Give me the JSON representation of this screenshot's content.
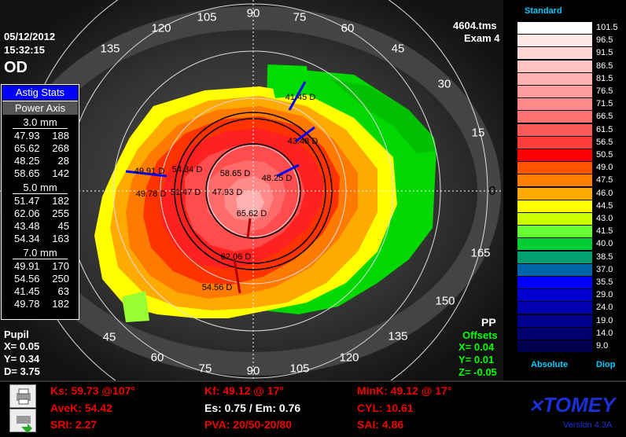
{
  "header": {
    "date": "05/12/2012",
    "time": "15:32:15",
    "eye": "OD",
    "file": "4604.tms",
    "exam": "Exam 4"
  },
  "angles": [
    "90",
    "75",
    "60",
    "45",
    "30",
    "15",
    "0",
    "165",
    "150",
    "135",
    "120",
    "105",
    "90",
    "75",
    "60",
    "45",
    "135",
    "120",
    "105"
  ],
  "astig_stats": {
    "title": "Astig Stats",
    "col_header": "Power  Axis",
    "sections": [
      {
        "label": "3.0 mm",
        "rows": [
          [
            "47.93",
            "188"
          ],
          [
            "65.62",
            "268"
          ],
          [
            "48.25",
            "28"
          ],
          [
            "58.65",
            "142"
          ]
        ]
      },
      {
        "label": "5.0 mm",
        "rows": [
          [
            "51.47",
            "182"
          ],
          [
            "62.06",
            "255"
          ],
          [
            "43.48",
            "45"
          ],
          [
            "54.34",
            "163"
          ]
        ]
      },
      {
        "label": "7.0 mm",
        "rows": [
          [
            "49.91",
            "170"
          ],
          [
            "54.56",
            "250"
          ],
          [
            "41.45",
            "63"
          ],
          [
            "49.78",
            "182"
          ]
        ]
      }
    ]
  },
  "map_labels": [
    "41.45 D",
    "43.48 D",
    "49.91 D",
    "54.34 D",
    "58.65 D",
    "48.25 D",
    "49.78 D",
    "51.47 D",
    "47.93 D",
    "65.62 D",
    "62.06 D",
    "54.56 D"
  ],
  "pupil": {
    "title": "Pupil",
    "x": "X=  0.05",
    "y": "Y=  0.34",
    "d": "D=  3.75"
  },
  "offsets": {
    "pp": "PP",
    "title": "Offsets",
    "x": "X=  0.04",
    "y": "Y=  0.01",
    "z": "Z= -0.05"
  },
  "legend": {
    "title": "Standard",
    "footer_left": "Absolute",
    "footer_right": "Diop",
    "scale": [
      {
        "v": "101.5",
        "c": "#ffffff"
      },
      {
        "v": "96.5",
        "c": "#ffe8e8"
      },
      {
        "v": "91.5",
        "c": "#ffd5d5"
      },
      {
        "v": "86.5",
        "c": "#ffc3c3"
      },
      {
        "v": "81.5",
        "c": "#ffb0b0"
      },
      {
        "v": "76.5",
        "c": "#ff9c9c"
      },
      {
        "v": "71.5",
        "c": "#ff8888"
      },
      {
        "v": "66.5",
        "c": "#ff7272"
      },
      {
        "v": "61.5",
        "c": "#ff5a5a"
      },
      {
        "v": "56.5",
        "c": "#ff3d3d"
      },
      {
        "v": "50.5",
        "c": "#ff0000"
      },
      {
        "v": "49.0",
        "c": "#ff5500"
      },
      {
        "v": "47.5",
        "c": "#ff8000"
      },
      {
        "v": "46.0",
        "c": "#ffaa00"
      },
      {
        "v": "44.5",
        "c": "#ffff00"
      },
      {
        "v": "43.0",
        "c": "#ccff00"
      },
      {
        "v": "41.5",
        "c": "#66ff33"
      },
      {
        "v": "40.0",
        "c": "#00cc33"
      },
      {
        "v": "38.5",
        "c": "#00a070"
      },
      {
        "v": "37.0",
        "c": "#0066aa"
      },
      {
        "v": "35.5",
        "c": "#0000ff"
      },
      {
        "v": "29.0",
        "c": "#0000d0"
      },
      {
        "v": "24.0",
        "c": "#0000b0"
      },
      {
        "v": "19.0",
        "c": "#000090"
      },
      {
        "v": "14.0",
        "c": "#000070"
      },
      {
        "v": "9.0",
        "c": "#000050"
      }
    ]
  },
  "bottom": {
    "ks": "Ks: 59.73 @107°",
    "avek": "AveK: 54.42",
    "sri": "SRI: 2.27",
    "kf": "Kf: 49.12 @ 17°",
    "es": "Es: 0.75 / Em: 0.76",
    "pva": "PVA: 20/50-20/80",
    "mink": "MinK: 49.12 @ 17°",
    "cyl": "CYL: 10.61",
    "sai": "SAI: 4.86",
    "brand": "TOMEY",
    "version": "Version 4.3A"
  }
}
